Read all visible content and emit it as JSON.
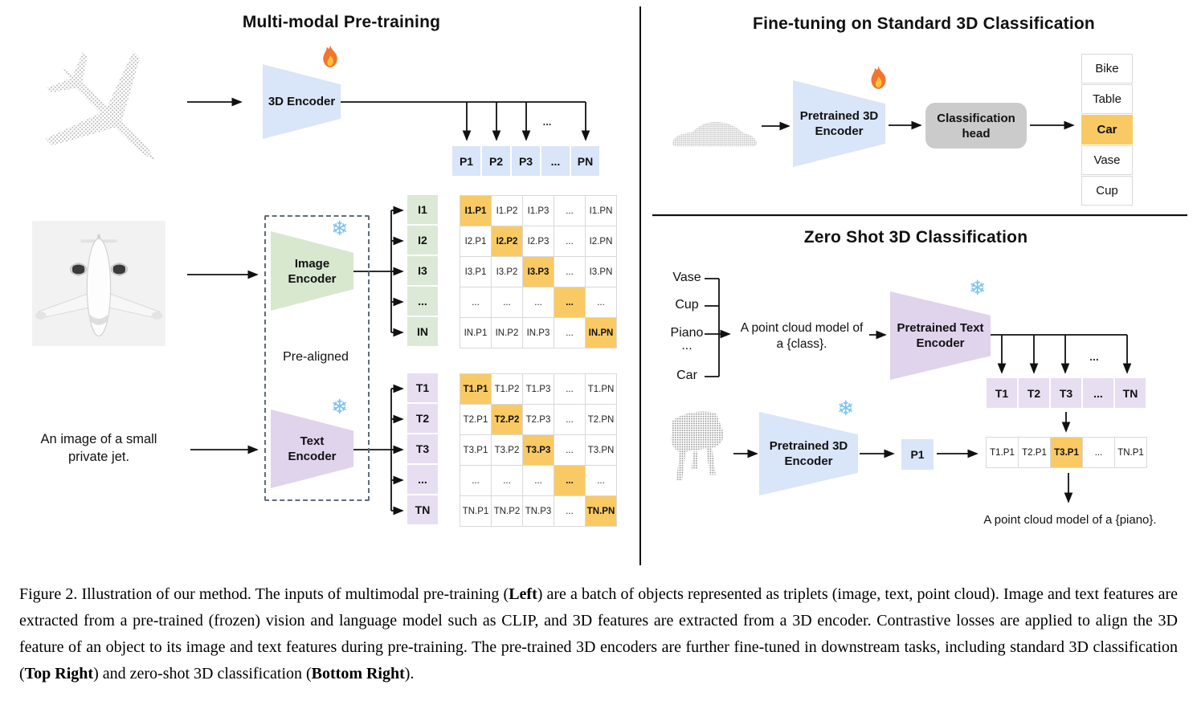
{
  "figure": {
    "left": {
      "title": "Multi-modal Pre-training",
      "encoder3d_label": "3D Encoder",
      "image_encoder_line1": "Image",
      "image_encoder_line2": "Encoder",
      "text_encoder_line1": "Text",
      "text_encoder_line2": "Encoder",
      "prealigned_label": "Pre-aligned",
      "input_caption_line1": "An image of a small",
      "input_caption_line2": "private jet.",
      "ellipsis": "...",
      "p_row": [
        "P1",
        "P2",
        "P3",
        "...",
        "PN"
      ],
      "i_labels": [
        "I1",
        "I2",
        "I3",
        "...",
        "IN"
      ],
      "t_labels": [
        "T1",
        "T2",
        "T3",
        "...",
        "TN"
      ],
      "i_matrix": [
        [
          "I1.P1",
          "I1.P2",
          "I1.P3",
          "...",
          "I1.PN"
        ],
        [
          "I2.P1",
          "I2.P2",
          "I2.P3",
          "...",
          "I2.PN"
        ],
        [
          "I3.P1",
          "I3.P2",
          "I3.P3",
          "...",
          "I3.PN"
        ],
        [
          "...",
          "...",
          "...",
          "...",
          "..."
        ],
        [
          "IN.P1",
          "IN.P2",
          "IN.P3",
          "...",
          "IN.PN"
        ]
      ],
      "t_matrix": [
        [
          "T1.P1",
          "T1.P2",
          "T1.P3",
          "...",
          "T1.PN"
        ],
        [
          "T2.P1",
          "T2.P2",
          "T2.P3",
          "...",
          "T2.PN"
        ],
        [
          "T3.P1",
          "T3.P2",
          "T3.P3",
          "...",
          "T3.PN"
        ],
        [
          "...",
          "...",
          "...",
          "...",
          "..."
        ],
        [
          "TN.P1",
          "TN.P2",
          "TN.P3",
          "...",
          "TN.PN"
        ]
      ],
      "icons": {
        "flame": "fire-icon",
        "snowflake_char": "❄"
      }
    },
    "top_right": {
      "title": "Fine-tuning on Standard 3D Classification",
      "encoder_line1": "Pretrained 3D",
      "encoder_line2": "Encoder",
      "head_line1": "Classification",
      "head_line2": "head",
      "classes": [
        "Bike",
        "Table",
        "Car",
        "Vase",
        "Cup"
      ],
      "highlight_index": 2
    },
    "bottom_right": {
      "title": "Zero Shot 3D Classification",
      "class_list": [
        "Vase",
        "Cup",
        "Piano",
        "...",
        "Car"
      ],
      "prompt_line1": "A point cloud model of",
      "prompt_line2": "a {class}.",
      "text_encoder_line1": "Pretrained Text",
      "text_encoder_line2": "Encoder",
      "encoder3d_line1": "Pretrained 3D",
      "encoder3d_line2": "Encoder",
      "p1_label": "P1",
      "t_row": [
        "T1",
        "T2",
        "T3",
        "...",
        "TN"
      ],
      "sim_row": [
        "T1.P1",
        "T2.P1",
        "T3.P1",
        "...",
        "TN.P1"
      ],
      "sim_highlight_index": 2,
      "ellipsis": "...",
      "result_text": "A point cloud model of a {piano}."
    },
    "colors": {
      "blue": "#d9e5f8",
      "green": "#d7e8cf",
      "label_green": "#dbe9d6",
      "purple": "#e0d3ec",
      "label_purple": "#e7def1",
      "orange": "#f9ca63",
      "head_gray": "#cbcbcb",
      "cell_border": "#d9d9d9",
      "pointcloud_gray": "#b0b0b0"
    }
  },
  "caption": {
    "segments": [
      {
        "text": "Figure 2. Illustration of our method. The inputs of multimodal pre-training (",
        "bold": false
      },
      {
        "text": "Left",
        "bold": true
      },
      {
        "text": ") are a batch of objects represented as triplets (image, text, point cloud). Image and text features are extracted from a pre-trained (frozen) vision and language model such as CLIP, and 3D features are extracted from a 3D encoder. Contrastive losses are applied to align the 3D feature of an object to its image and text features during pre-training. The pre-trained 3D encoders are further fine-tuned in downstream tasks, including standard 3D classification (",
        "bold": false
      },
      {
        "text": "Top Right",
        "bold": true
      },
      {
        "text": ") and zero-shot 3D classification (",
        "bold": false
      },
      {
        "text": "Bottom Right",
        "bold": true
      },
      {
        "text": ").",
        "bold": false
      }
    ]
  }
}
